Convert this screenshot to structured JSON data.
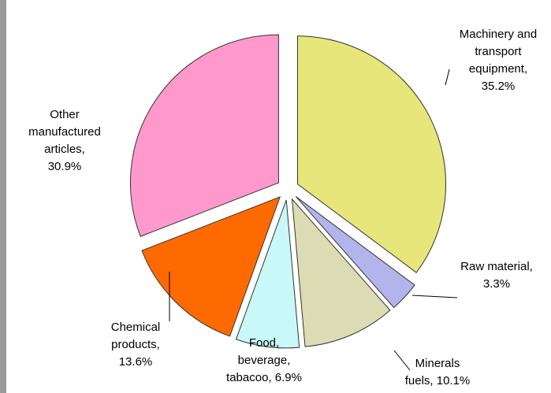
{
  "chart_data": {
    "type": "pie",
    "categories": [
      "Machinery and transport equipment, 35.2%",
      "Raw material, 3.3%",
      "Minerals fuels, 10.1%",
      "Food, beverage, tabacoo, 6.9%",
      "Chemical products, 13.6%",
      "Other manufactured articles, 30.9%"
    ],
    "values": [
      35.2,
      3.3,
      10.1,
      6.9,
      13.6,
      30.9
    ],
    "colors": [
      "#e6e67a",
      "#b4b4ec",
      "#dcdcb4",
      "#c8f8f8",
      "#ff6a00",
      "#ff99cc"
    ]
  }
}
